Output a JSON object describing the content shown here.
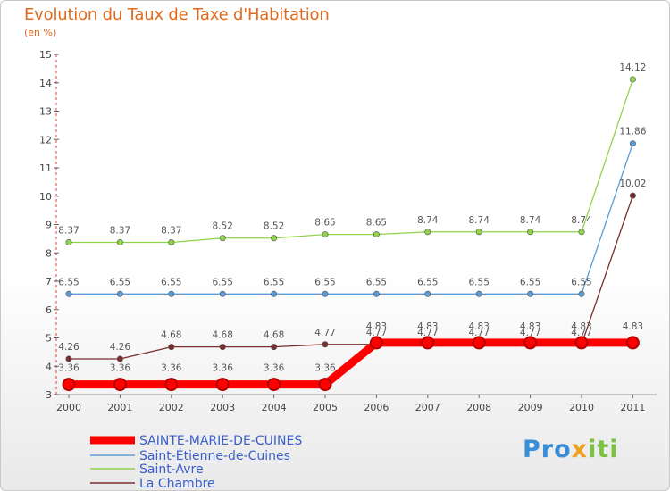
{
  "chart_data": {
    "type": "line",
    "title": "Evolution du Taux de Taxe d'Habitation",
    "subtitle": "(en %)",
    "xlabel": "",
    "ylabel": "",
    "x": [
      "2000",
      "2001",
      "2002",
      "2003",
      "2004",
      "2005",
      "2006",
      "2007",
      "2008",
      "2009",
      "2010",
      "2011"
    ],
    "ylim": [
      3,
      15
    ],
    "yticks": [
      3,
      4,
      5,
      6,
      7,
      8,
      9,
      10,
      11,
      12,
      13,
      14,
      15
    ],
    "series": [
      {
        "name": "SAINTE-MARIE-DE-CUINES",
        "color": "#ff0000",
        "values": [
          3.36,
          3.36,
          3.36,
          3.36,
          3.36,
          3.36,
          4.83,
          4.83,
          4.83,
          4.83,
          4.83,
          4.83
        ],
        "labels": [
          "3.36",
          "3.36",
          "3.36",
          "3.36",
          "3.36",
          "3.36",
          "4.83",
          "4.83",
          "4.83",
          "4.83",
          "4.83",
          "4.83"
        ]
      },
      {
        "name": "Saint-Étienne-de-Cuines",
        "color": "#5b9bd5",
        "values": [
          6.55,
          6.55,
          6.55,
          6.55,
          6.55,
          6.55,
          6.55,
          6.55,
          6.55,
          6.55,
          6.55,
          11.86
        ],
        "labels": [
          "6.55",
          "6.55",
          "6.55",
          "6.55",
          "6.55",
          "6.55",
          "6.55",
          "6.55",
          "6.55",
          "6.55",
          "6.55",
          "11.86"
        ]
      },
      {
        "name": "Saint-Avre",
        "color": "#8fd44a",
        "values": [
          8.37,
          8.37,
          8.37,
          8.52,
          8.52,
          8.65,
          8.65,
          8.74,
          8.74,
          8.74,
          8.74,
          14.12
        ],
        "labels": [
          "8.37",
          "8.37",
          "8.37",
          "8.52",
          "8.52",
          "8.65",
          "8.65",
          "8.74",
          "8.74",
          "8.74",
          "8.74",
          "14.12"
        ]
      },
      {
        "name": "La Chambre",
        "color": "#7a2e2e",
        "values": [
          4.26,
          4.26,
          4.68,
          4.68,
          4.68,
          4.77,
          4.77,
          4.77,
          4.77,
          4.77,
          4.77,
          10.02
        ],
        "labels": [
          "4.26",
          "4.26",
          "4.68",
          "4.68",
          "4.68",
          "4.77",
          "4.77",
          "4.77",
          "4.77",
          "4.77",
          "4.77",
          "10.02"
        ]
      }
    ],
    "legend_position": "bottom-left"
  },
  "logo": {
    "part1": "Pro",
    "part2": "x",
    "part3": "iti"
  }
}
